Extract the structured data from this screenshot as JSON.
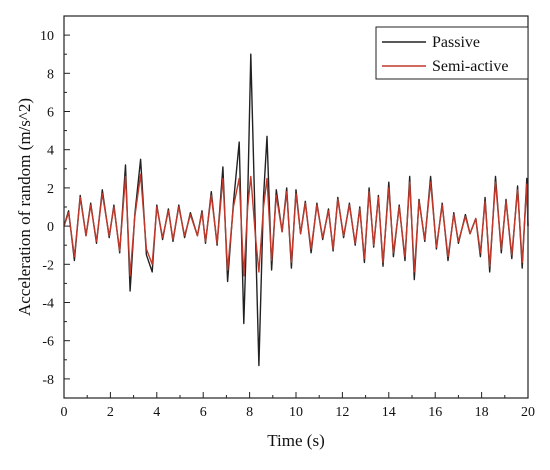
{
  "chart_data": {
    "type": "line",
    "title": "",
    "xlabel": "Time (s)",
    "ylabel": "Acceleration of random (m/s^2)",
    "xlim": [
      0,
      20
    ],
    "ylim": [
      -9,
      11
    ],
    "xticks": [
      0,
      2,
      4,
      6,
      8,
      10,
      12,
      14,
      16,
      18,
      20
    ],
    "yticks": [
      -8,
      -6,
      -4,
      -2,
      0,
      2,
      4,
      6,
      8,
      10
    ],
    "grid": false,
    "legend_position": "top-right",
    "series": [
      {
        "name": "Passive",
        "color": "#222222",
        "points": [
          [
            0,
            0
          ],
          [
            0.2,
            0.8
          ],
          [
            0.45,
            -1.8
          ],
          [
            0.7,
            1.6
          ],
          [
            0.95,
            -0.5
          ],
          [
            1.15,
            1.2
          ],
          [
            1.4,
            -0.9
          ],
          [
            1.65,
            1.9
          ],
          [
            1.95,
            -0.6
          ],
          [
            2.15,
            1.1
          ],
          [
            2.4,
            -1.4
          ],
          [
            2.65,
            3.2
          ],
          [
            2.85,
            -3.4
          ],
          [
            3.05,
            0.6
          ],
          [
            3.3,
            3.5
          ],
          [
            3.55,
            -1.5
          ],
          [
            3.8,
            -2.4
          ],
          [
            4.0,
            1.1
          ],
          [
            4.25,
            -0.7
          ],
          [
            4.5,
            0.9
          ],
          [
            4.7,
            -0.8
          ],
          [
            4.95,
            1.1
          ],
          [
            5.2,
            -0.6
          ],
          [
            5.45,
            0.7
          ],
          [
            5.75,
            -0.5
          ],
          [
            5.95,
            0.8
          ],
          [
            6.1,
            -0.9
          ],
          [
            6.35,
            1.8
          ],
          [
            6.6,
            -1.0
          ],
          [
            6.85,
            3.1
          ],
          [
            7.05,
            -2.9
          ],
          [
            7.3,
            1.2
          ],
          [
            7.55,
            4.4
          ],
          [
            7.75,
            -5.1
          ],
          [
            7.92,
            1.5
          ],
          [
            8.05,
            9.0
          ],
          [
            8.25,
            -0.3
          ],
          [
            8.4,
            -7.3
          ],
          [
            8.6,
            1.5
          ],
          [
            8.75,
            4.7
          ],
          [
            8.95,
            -2.3
          ],
          [
            9.15,
            1.9
          ],
          [
            9.4,
            -0.3
          ],
          [
            9.6,
            2.0
          ],
          [
            9.8,
            -2.2
          ],
          [
            10.0,
            1.9
          ],
          [
            10.2,
            -0.4
          ],
          [
            10.4,
            1.3
          ],
          [
            10.65,
            -1.4
          ],
          [
            10.9,
            1.2
          ],
          [
            11.15,
            -0.7
          ],
          [
            11.4,
            0.9
          ],
          [
            11.6,
            -1.3
          ],
          [
            11.8,
            1.5
          ],
          [
            12.05,
            -0.6
          ],
          [
            12.3,
            1.2
          ],
          [
            12.55,
            -1.0
          ],
          [
            12.75,
            1.0
          ],
          [
            12.95,
            -1.9
          ],
          [
            13.15,
            2.0
          ],
          [
            13.35,
            -1.1
          ],
          [
            13.55,
            1.6
          ],
          [
            13.75,
            -2.1
          ],
          [
            14.0,
            2.3
          ],
          [
            14.2,
            -1.6
          ],
          [
            14.45,
            1.1
          ],
          [
            14.7,
            -1.8
          ],
          [
            14.9,
            2.6
          ],
          [
            15.1,
            -2.8
          ],
          [
            15.3,
            1.4
          ],
          [
            15.55,
            -0.8
          ],
          [
            15.8,
            2.6
          ],
          [
            16.05,
            -1.2
          ],
          [
            16.3,
            1.2
          ],
          [
            16.55,
            -1.8
          ],
          [
            16.8,
            0.7
          ],
          [
            17.0,
            -0.9
          ],
          [
            17.3,
            0.6
          ],
          [
            17.5,
            -0.4
          ],
          [
            17.75,
            0.4
          ],
          [
            17.95,
            -1.6
          ],
          [
            18.15,
            1.5
          ],
          [
            18.35,
            -2.4
          ],
          [
            18.6,
            2.6
          ],
          [
            18.85,
            -1.4
          ],
          [
            19.05,
            1.4
          ],
          [
            19.3,
            -1.7
          ],
          [
            19.55,
            2.1
          ],
          [
            19.75,
            -2.2
          ],
          [
            19.95,
            2.5
          ],
          [
            20.0,
            0.0
          ]
        ]
      },
      {
        "name": "Semi-active",
        "color": "#c0392b",
        "points": [
          [
            0,
            0
          ],
          [
            0.2,
            0.7
          ],
          [
            0.45,
            -1.6
          ],
          [
            0.7,
            1.5
          ],
          [
            0.95,
            -0.5
          ],
          [
            1.15,
            1.1
          ],
          [
            1.4,
            -0.8
          ],
          [
            1.65,
            1.7
          ],
          [
            1.95,
            -0.5
          ],
          [
            2.15,
            1.0
          ],
          [
            2.4,
            -1.3
          ],
          [
            2.65,
            2.6
          ],
          [
            2.85,
            -2.6
          ],
          [
            3.05,
            0.5
          ],
          [
            3.3,
            2.7
          ],
          [
            3.55,
            -1.2
          ],
          [
            3.8,
            -2.0
          ],
          [
            4.0,
            1.0
          ],
          [
            4.25,
            -0.6
          ],
          [
            4.5,
            0.8
          ],
          [
            4.7,
            -0.7
          ],
          [
            4.95,
            1.0
          ],
          [
            5.2,
            -0.5
          ],
          [
            5.45,
            0.6
          ],
          [
            5.75,
            -0.5
          ],
          [
            5.95,
            0.7
          ],
          [
            6.1,
            -0.8
          ],
          [
            6.35,
            1.6
          ],
          [
            6.6,
            -0.9
          ],
          [
            6.85,
            2.5
          ],
          [
            7.05,
            -2.3
          ],
          [
            7.3,
            1.0
          ],
          [
            7.55,
            2.5
          ],
          [
            7.75,
            -2.6
          ],
          [
            7.92,
            1.0
          ],
          [
            8.05,
            2.6
          ],
          [
            8.25,
            -0.5
          ],
          [
            8.4,
            -2.4
          ],
          [
            8.6,
            1.0
          ],
          [
            8.75,
            2.5
          ],
          [
            8.95,
            -1.8
          ],
          [
            9.15,
            1.6
          ],
          [
            9.4,
            -0.3
          ],
          [
            9.6,
            1.8
          ],
          [
            9.8,
            -1.9
          ],
          [
            10.0,
            1.7
          ],
          [
            10.2,
            -0.4
          ],
          [
            10.4,
            1.2
          ],
          [
            10.65,
            -1.2
          ],
          [
            10.9,
            1.1
          ],
          [
            11.15,
            -0.6
          ],
          [
            11.4,
            0.8
          ],
          [
            11.6,
            -1.2
          ],
          [
            11.8,
            1.4
          ],
          [
            12.05,
            -0.5
          ],
          [
            12.3,
            1.1
          ],
          [
            12.55,
            -0.9
          ],
          [
            12.75,
            0.9
          ],
          [
            12.95,
            -1.7
          ],
          [
            13.15,
            1.8
          ],
          [
            13.35,
            -1.0
          ],
          [
            13.55,
            1.5
          ],
          [
            13.75,
            -1.9
          ],
          [
            14.0,
            2.0
          ],
          [
            14.2,
            -1.4
          ],
          [
            14.45,
            1.0
          ],
          [
            14.7,
            -1.6
          ],
          [
            14.9,
            2.3
          ],
          [
            15.1,
            -2.4
          ],
          [
            15.3,
            1.3
          ],
          [
            15.55,
            -0.7
          ],
          [
            15.8,
            2.3
          ],
          [
            16.05,
            -1.1
          ],
          [
            16.3,
            1.1
          ],
          [
            16.55,
            -1.6
          ],
          [
            16.8,
            0.6
          ],
          [
            17.0,
            -0.8
          ],
          [
            17.3,
            0.5
          ],
          [
            17.5,
            -0.4
          ],
          [
            17.75,
            0.4
          ],
          [
            17.95,
            -1.4
          ],
          [
            18.15,
            1.3
          ],
          [
            18.35,
            -2.1
          ],
          [
            18.6,
            2.3
          ],
          [
            18.85,
            -1.2
          ],
          [
            19.05,
            1.3
          ],
          [
            19.3,
            -1.5
          ],
          [
            19.55,
            1.9
          ],
          [
            19.75,
            -1.9
          ],
          [
            19.95,
            2.2
          ],
          [
            20.0,
            0.0
          ]
        ]
      }
    ]
  }
}
